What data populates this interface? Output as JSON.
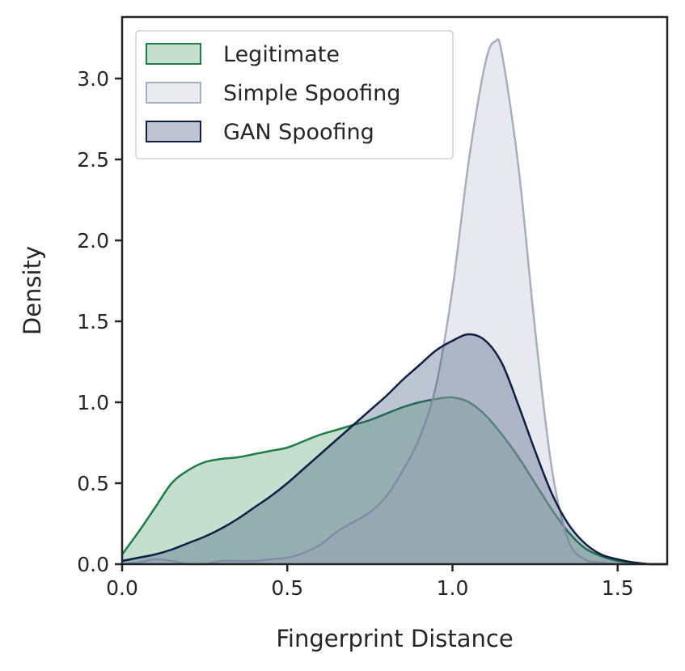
{
  "chart_data": {
    "type": "area",
    "title": "",
    "xlabel": "Fingerprint Distance",
    "ylabel": "Density",
    "xlim": [
      0.0,
      1.65
    ],
    "ylim": [
      0.0,
      3.38
    ],
    "xticks": [
      0.0,
      0.5,
      1.0,
      1.5
    ],
    "xtick_labels": [
      "0.0",
      "0.5",
      "1.0",
      "1.5"
    ],
    "yticks": [
      0.0,
      0.5,
      1.0,
      1.5,
      2.0,
      2.5,
      3.0
    ],
    "ytick_labels": [
      "0.0",
      "0.5",
      "1.0",
      "1.5",
      "2.0",
      "2.5",
      "3.0"
    ],
    "grid": false,
    "legend_position": "top-left",
    "series": [
      {
        "name": "Legitimate",
        "fill_color": "#c4dfcd",
        "line_color": "#1e7d45",
        "fill_opacity": 1.0,
        "x": [
          0.0,
          0.05,
          0.1,
          0.15,
          0.2,
          0.25,
          0.3,
          0.35,
          0.4,
          0.45,
          0.5,
          0.55,
          0.6,
          0.65,
          0.7,
          0.75,
          0.8,
          0.85,
          0.9,
          0.95,
          1.0,
          1.05,
          1.1,
          1.15,
          1.2,
          1.25,
          1.3,
          1.35,
          1.4,
          1.45,
          1.5,
          1.55,
          1.6,
          1.65
        ],
        "y": [
          0.06,
          0.2,
          0.35,
          0.5,
          0.58,
          0.63,
          0.65,
          0.66,
          0.68,
          0.7,
          0.72,
          0.76,
          0.8,
          0.83,
          0.86,
          0.89,
          0.93,
          0.97,
          1.0,
          1.02,
          1.03,
          1.0,
          0.92,
          0.8,
          0.66,
          0.5,
          0.34,
          0.2,
          0.1,
          0.05,
          0.02,
          0.01,
          0.0,
          0.0
        ]
      },
      {
        "name": "Simple Spoofing",
        "fill_color": "#c9ced9",
        "line_color": "#a6afbd",
        "fill_opacity": 0.45,
        "x": [
          0.0,
          0.05,
          0.1,
          0.15,
          0.2,
          0.25,
          0.3,
          0.35,
          0.4,
          0.45,
          0.5,
          0.55,
          0.6,
          0.65,
          0.7,
          0.75,
          0.8,
          0.85,
          0.9,
          0.95,
          1.0,
          1.05,
          1.1,
          1.13,
          1.15,
          1.2,
          1.25,
          1.3,
          1.35,
          1.4,
          1.45,
          1.5,
          1.55,
          1.6,
          1.65
        ],
        "y": [
          0.0,
          0.01,
          0.03,
          0.02,
          0.0,
          0.0,
          0.02,
          0.02,
          0.02,
          0.03,
          0.04,
          0.07,
          0.12,
          0.2,
          0.26,
          0.32,
          0.42,
          0.58,
          0.78,
          1.1,
          1.7,
          2.5,
          3.1,
          3.23,
          3.15,
          2.45,
          1.45,
          0.6,
          0.15,
          0.03,
          0.01,
          0.0,
          0.0,
          0.0,
          0.0
        ]
      },
      {
        "name": "GAN Spoofing",
        "fill_color": "#28406b",
        "line_color": "#0d1f45",
        "fill_opacity": 0.3,
        "x": [
          0.0,
          0.05,
          0.1,
          0.15,
          0.2,
          0.25,
          0.3,
          0.35,
          0.4,
          0.45,
          0.5,
          0.55,
          0.6,
          0.65,
          0.7,
          0.75,
          0.8,
          0.85,
          0.9,
          0.95,
          1.0,
          1.05,
          1.1,
          1.15,
          1.2,
          1.25,
          1.3,
          1.35,
          1.4,
          1.45,
          1.5,
          1.55,
          1.6,
          1.65
        ],
        "y": [
          0.02,
          0.04,
          0.06,
          0.09,
          0.13,
          0.17,
          0.22,
          0.28,
          0.35,
          0.42,
          0.5,
          0.59,
          0.68,
          0.77,
          0.86,
          0.95,
          1.04,
          1.14,
          1.23,
          1.32,
          1.38,
          1.42,
          1.38,
          1.24,
          0.98,
          0.7,
          0.44,
          0.25,
          0.13,
          0.06,
          0.03,
          0.01,
          0.0,
          0.0
        ]
      }
    ]
  }
}
